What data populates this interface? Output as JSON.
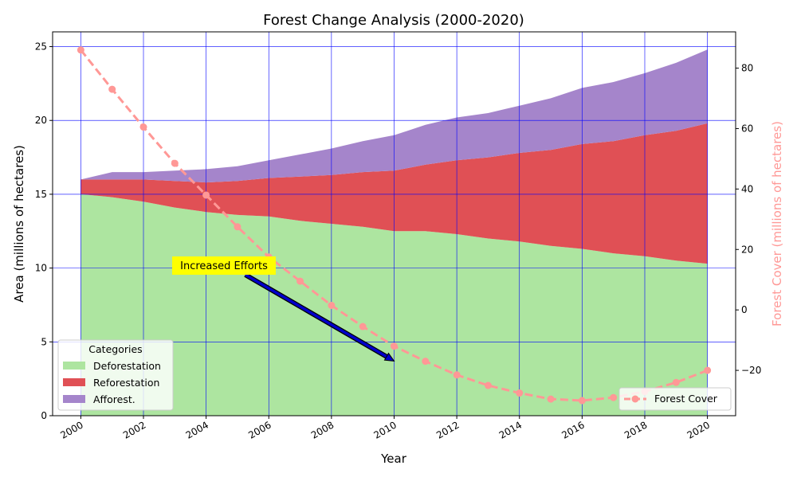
{
  "chart_data": {
    "type": "area",
    "title": "Forest Change Analysis (2000-2020)",
    "xlabel": "Year",
    "ylabel": "Area (millions of hectares)",
    "y2label": "Forest Cover (millions of hectares)",
    "x": [
      2000,
      2001,
      2002,
      2003,
      2004,
      2005,
      2006,
      2007,
      2008,
      2009,
      2010,
      2011,
      2012,
      2013,
      2014,
      2015,
      2016,
      2017,
      2018,
      2019,
      2020
    ],
    "xticks": [
      "2000",
      "2002",
      "2004",
      "2006",
      "2008",
      "2010",
      "2012",
      "2014",
      "2016",
      "2018",
      "2020"
    ],
    "xlim": [
      1999.1,
      2020.9
    ],
    "ylim": [
      0,
      26
    ],
    "yticks": [
      "0",
      "5",
      "10",
      "15",
      "20",
      "25"
    ],
    "y2lim": [
      -35,
      92
    ],
    "y2ticks": [
      "−20",
      "0",
      "20",
      "40",
      "60",
      "80"
    ],
    "stacked": true,
    "series": [
      {
        "name": "Deforestation",
        "color": "#ade5a0",
        "values": [
          15.0,
          14.8,
          14.5,
          14.1,
          13.8,
          13.6,
          13.5,
          13.2,
          13.0,
          12.8,
          12.5,
          12.5,
          12.3,
          12.0,
          11.8,
          11.5,
          11.3,
          11.0,
          10.8,
          10.5,
          10.3
        ]
      },
      {
        "name": "Reforestation",
        "color": "#e05055",
        "values": [
          1.0,
          1.2,
          1.5,
          1.8,
          2.0,
          2.3,
          2.6,
          3.0,
          3.3,
          3.7,
          4.1,
          4.5,
          5.0,
          5.5,
          6.0,
          6.5,
          7.1,
          7.6,
          8.2,
          8.8,
          9.5
        ]
      },
      {
        "name": "Afforest.",
        "color": "#a585cb",
        "values": [
          0.0,
          0.5,
          0.5,
          0.7,
          0.9,
          1.0,
          1.2,
          1.5,
          1.8,
          2.1,
          2.4,
          2.7,
          2.9,
          3.0,
          3.2,
          3.5,
          3.8,
          4.0,
          4.2,
          4.6,
          5.0
        ]
      }
    ],
    "line_series": {
      "name": "Forest Cover",
      "color": "#ff9896",
      "axis": "right",
      "values": [
        86,
        73,
        60.5,
        48.5,
        38,
        27.5,
        17.5,
        9.5,
        1.5,
        -5.5,
        -12,
        -17,
        -21.5,
        -25,
        -27.5,
        -29.5,
        -30,
        -29,
        -27,
        -24,
        -20
      ]
    },
    "legend_title": "Categories",
    "legend_placement": "lower-left",
    "line_legend_placement": "lower-right",
    "grid": true,
    "grid_color": "#0000ff",
    "annotation": {
      "text": "Increased Efforts",
      "x": 2010,
      "y": 3.7,
      "text_x": 2005.2,
      "text_y": 9.6,
      "box_color": "#ffff00",
      "arrow_color": "#0000cc"
    }
  }
}
